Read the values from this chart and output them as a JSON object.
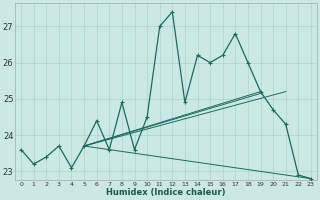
{
  "xlabel": "Humidex (Indice chaleur)",
  "bg_color": "#cce8e4",
  "grid_color": "#b0d4d0",
  "line_color": "#1a6b60",
  "xlim": [
    -0.5,
    23.5
  ],
  "ylim": [
    22.75,
    27.65
  ],
  "yticks": [
    23,
    24,
    25,
    26,
    27
  ],
  "xticks": [
    0,
    1,
    2,
    3,
    4,
    5,
    6,
    7,
    8,
    9,
    10,
    11,
    12,
    13,
    14,
    15,
    16,
    17,
    18,
    19,
    20,
    21,
    22,
    23
  ],
  "main_series": [
    23.6,
    23.2,
    23.4,
    23.7,
    23.1,
    23.7,
    24.4,
    23.6,
    24.9,
    23.6,
    24.5,
    27.0,
    27.4,
    24.9,
    26.2,
    26.0,
    26.2,
    26.8,
    26.0,
    25.2,
    24.7,
    24.3,
    22.9,
    22.8
  ],
  "trend_lines": [
    {
      "x0": 5,
      "y0": 23.7,
      "x1": 23,
      "y1": 22.8
    },
    {
      "x0": 5,
      "y0": 23.7,
      "x1": 21,
      "y1": 25.2
    },
    {
      "x0": 5,
      "y0": 23.7,
      "x1": 19,
      "y1": 25.2
    },
    {
      "x0": 5,
      "y0": 23.7,
      "x1": 19,
      "y1": 25.15
    }
  ]
}
